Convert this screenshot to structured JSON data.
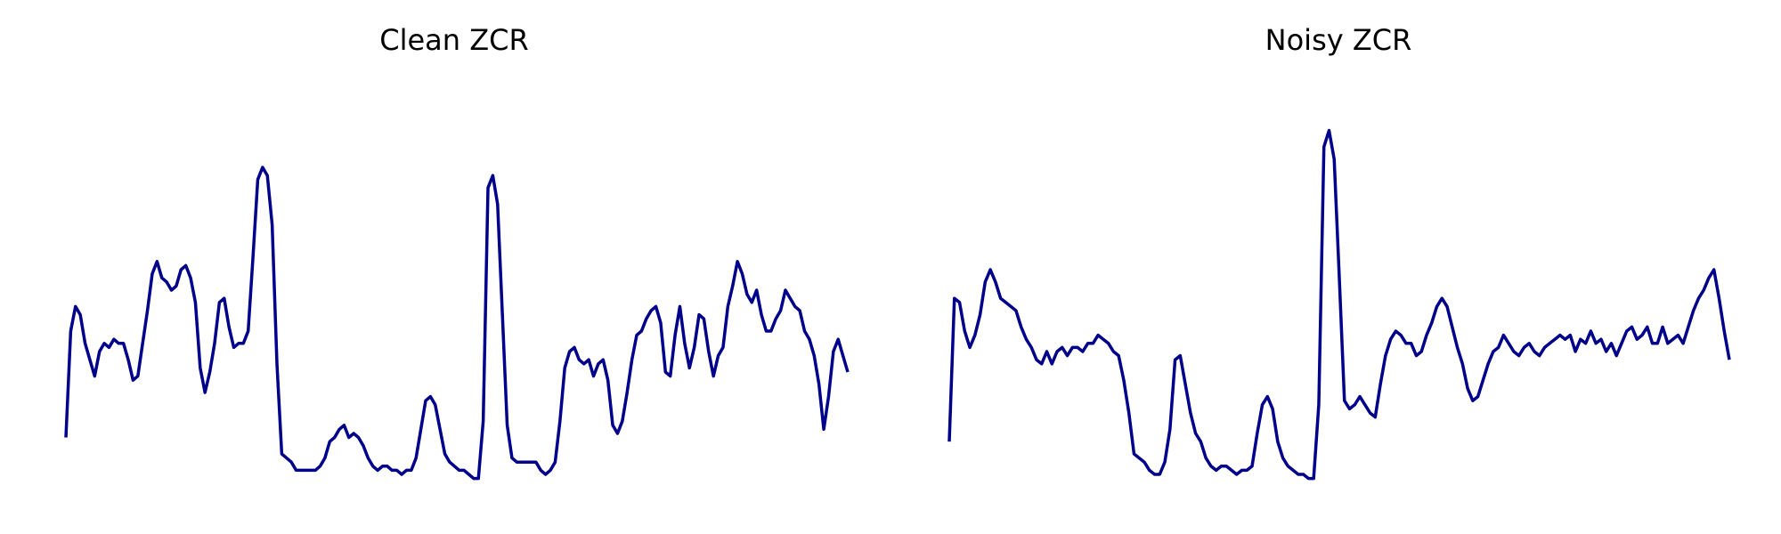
{
  "chart_data": [
    {
      "type": "line",
      "title": "Clean ZCR",
      "axes_visible": false,
      "grid": false,
      "ylim": [
        0,
        1
      ],
      "line_color": "#00008b",
      "series": [
        {
          "values": [
            0.14,
            0.4,
            0.46,
            0.44,
            0.37,
            0.33,
            0.29,
            0.35,
            0.37,
            0.36,
            0.38,
            0.37,
            0.37,
            0.33,
            0.28,
            0.29,
            0.37,
            0.45,
            0.54,
            0.57,
            0.53,
            0.52,
            0.5,
            0.51,
            0.55,
            0.56,
            0.53,
            0.47,
            0.31,
            0.25,
            0.3,
            0.37,
            0.47,
            0.48,
            0.41,
            0.36,
            0.37,
            0.37,
            0.4,
            0.58,
            0.77,
            0.8,
            0.78,
            0.66,
            0.32,
            0.1,
            0.09,
            0.08,
            0.06,
            0.06,
            0.06,
            0.06,
            0.06,
            0.07,
            0.09,
            0.13,
            0.14,
            0.16,
            0.17,
            0.14,
            0.15,
            0.14,
            0.12,
            0.09,
            0.07,
            0.06,
            0.07,
            0.07,
            0.06,
            0.06,
            0.05,
            0.06,
            0.06,
            0.09,
            0.16,
            0.23,
            0.24,
            0.22,
            0.16,
            0.1,
            0.08,
            0.07,
            0.06,
            0.06,
            0.05,
            0.04,
            0.04,
            0.18,
            0.75,
            0.78,
            0.71,
            0.44,
            0.17,
            0.09,
            0.08,
            0.08,
            0.08,
            0.08,
            0.08,
            0.06,
            0.05,
            0.06,
            0.08,
            0.18,
            0.31,
            0.35,
            0.36,
            0.33,
            0.32,
            0.33,
            0.29,
            0.32,
            0.33,
            0.28,
            0.17,
            0.15,
            0.18,
            0.25,
            0.33,
            0.39,
            0.4,
            0.43,
            0.45,
            0.46,
            0.42,
            0.3,
            0.29,
            0.39,
            0.46,
            0.37,
            0.31,
            0.36,
            0.44,
            0.43,
            0.35,
            0.29,
            0.34,
            0.36,
            0.46,
            0.51,
            0.57,
            0.54,
            0.49,
            0.47,
            0.5,
            0.44,
            0.4,
            0.4,
            0.43,
            0.45,
            0.5,
            0.48,
            0.46,
            0.45,
            0.4,
            0.38,
            0.34,
            0.27,
            0.16,
            0.24,
            0.35,
            0.38,
            0.34,
            0.3
          ]
        }
      ]
    },
    {
      "type": "line",
      "title": "Noisy ZCR",
      "axes_visible": false,
      "grid": false,
      "ylim": [
        0,
        1
      ],
      "line_color": "#00008b",
      "series": [
        {
          "values": [
            0.13,
            0.48,
            0.47,
            0.4,
            0.36,
            0.39,
            0.44,
            0.52,
            0.55,
            0.52,
            0.48,
            0.47,
            0.46,
            0.45,
            0.41,
            0.38,
            0.36,
            0.33,
            0.32,
            0.35,
            0.32,
            0.35,
            0.36,
            0.34,
            0.36,
            0.36,
            0.35,
            0.37,
            0.37,
            0.39,
            0.38,
            0.37,
            0.35,
            0.34,
            0.28,
            0.2,
            0.1,
            0.09,
            0.08,
            0.06,
            0.05,
            0.05,
            0.08,
            0.16,
            0.33,
            0.34,
            0.27,
            0.2,
            0.15,
            0.13,
            0.09,
            0.07,
            0.06,
            0.07,
            0.07,
            0.06,
            0.05,
            0.06,
            0.06,
            0.07,
            0.15,
            0.22,
            0.24,
            0.21,
            0.13,
            0.09,
            0.07,
            0.06,
            0.05,
            0.05,
            0.04,
            0.04,
            0.22,
            0.85,
            0.89,
            0.82,
            0.53,
            0.23,
            0.21,
            0.22,
            0.24,
            0.22,
            0.2,
            0.19,
            0.27,
            0.34,
            0.38,
            0.4,
            0.39,
            0.37,
            0.37,
            0.34,
            0.35,
            0.39,
            0.42,
            0.46,
            0.48,
            0.46,
            0.41,
            0.36,
            0.32,
            0.26,
            0.23,
            0.24,
            0.28,
            0.32,
            0.35,
            0.36,
            0.39,
            0.37,
            0.35,
            0.34,
            0.36,
            0.37,
            0.35,
            0.34,
            0.36,
            0.37,
            0.38,
            0.39,
            0.38,
            0.39,
            0.35,
            0.38,
            0.37,
            0.4,
            0.37,
            0.38,
            0.35,
            0.37,
            0.34,
            0.37,
            0.4,
            0.41,
            0.38,
            0.39,
            0.41,
            0.37,
            0.37,
            0.41,
            0.37,
            0.38,
            0.39,
            0.37,
            0.41,
            0.45,
            0.48,
            0.5,
            0.53,
            0.55,
            0.48,
            0.4,
            0.33
          ]
        }
      ]
    }
  ]
}
